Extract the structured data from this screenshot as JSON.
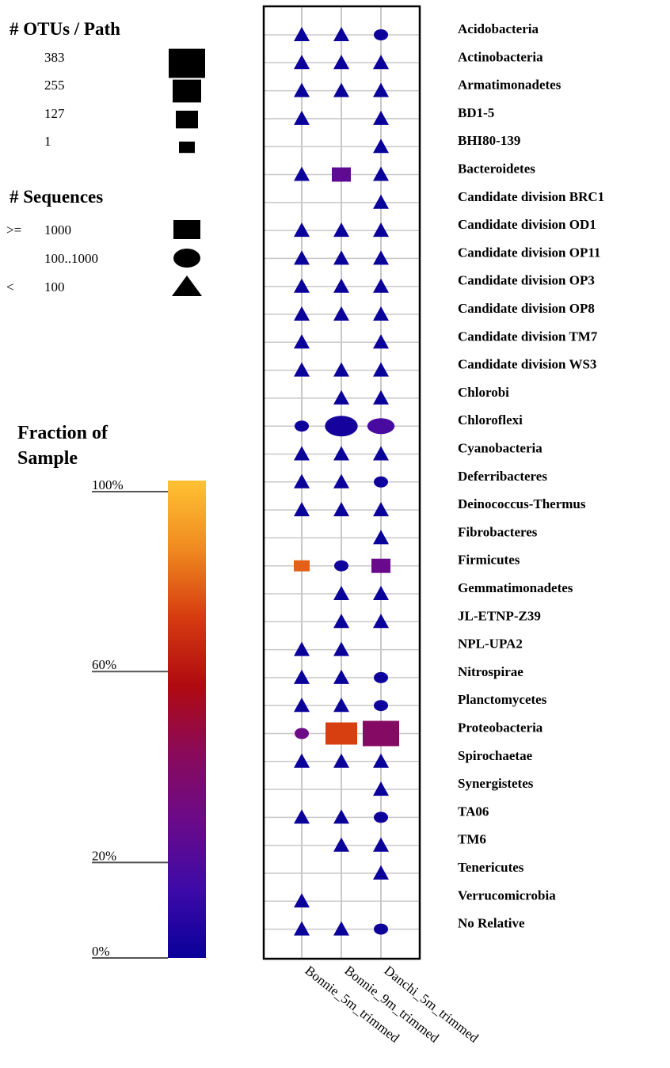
{
  "legend": {
    "otus_title": "# OTUs / Path",
    "otus": [
      {
        "label": "383",
        "value": 383
      },
      {
        "label": "255",
        "value": 255
      },
      {
        "label": "127",
        "value": 127
      },
      {
        "label": "1",
        "value": 1
      }
    ],
    "seq_title": "# Sequences",
    "seq": [
      {
        "op": ">=",
        "label": "1000",
        "shape": "square"
      },
      {
        "op": "",
        "label": "100..1000",
        "shape": "circle"
      },
      {
        "op": "<",
        "label": "100",
        "shape": "triangle"
      }
    ],
    "fraction_title_1": "Fraction of",
    "fraction_title_2": "Sample",
    "fraction_ticks": [
      "100%",
      "60%",
      "20%",
      "0%"
    ],
    "fraction_tick_values": [
      100,
      60,
      20,
      0
    ],
    "colorscale": [
      "#0a009a",
      "#3d0aa8",
      "#6a0a8a",
      "#8a0a5a",
      "#b00a10",
      "#d63c10",
      "#f08a20",
      "#ffc233"
    ]
  },
  "chart_data": {
    "type": "scatter",
    "columns": [
      "Bonnie_5m_trimmed",
      "Bonnie_9m_trimmed",
      "Danchi_5m_trimmed"
    ],
    "rows": [
      "Acidobacteria",
      "Actinobacteria",
      "Armatimonadetes",
      "BD1-5",
      "BHI80-139",
      "Bacteroidetes",
      "Candidate division BRC1",
      "Candidate division OD1",
      "Candidate division OP11",
      "Candidate division OP3",
      "Candidate division OP8",
      "Candidate division TM7",
      "Candidate division WS3",
      "Chlorobi",
      "Chloroflexi",
      "Cyanobacteria",
      "Deferribacteres",
      "Deinococcus-Thermus",
      "Fibrobacteres",
      "Firmicutes",
      "Gemmatimonadetes",
      "JL-ETNP-Z39",
      "NPL-UPA2",
      "Nitrospirae",
      "Planctomycetes",
      "Proteobacteria",
      "Spirochaetae",
      "Synergistetes",
      "TA06",
      "TM6",
      "Tenericutes",
      "Verrucomicrobia",
      "No Relative"
    ],
    "points": [
      {
        "row": 0,
        "col": 0,
        "shape": "triangle",
        "otus": 1,
        "fraction": 0
      },
      {
        "row": 0,
        "col": 1,
        "shape": "triangle",
        "otus": 1,
        "fraction": 0
      },
      {
        "row": 0,
        "col": 2,
        "shape": "circle",
        "otus": 1,
        "fraction": 1
      },
      {
        "row": 1,
        "col": 0,
        "shape": "triangle",
        "otus": 1,
        "fraction": 0
      },
      {
        "row": 1,
        "col": 1,
        "shape": "triangle",
        "otus": 1,
        "fraction": 0
      },
      {
        "row": 1,
        "col": 2,
        "shape": "triangle",
        "otus": 1,
        "fraction": 0
      },
      {
        "row": 2,
        "col": 0,
        "shape": "triangle",
        "otus": 1,
        "fraction": 0
      },
      {
        "row": 2,
        "col": 1,
        "shape": "triangle",
        "otus": 1,
        "fraction": 0
      },
      {
        "row": 2,
        "col": 2,
        "shape": "triangle",
        "otus": 1,
        "fraction": 0
      },
      {
        "row": 3,
        "col": 0,
        "shape": "triangle",
        "otus": 1,
        "fraction": 0
      },
      {
        "row": 3,
        "col": 2,
        "shape": "triangle",
        "otus": 1,
        "fraction": 0
      },
      {
        "row": 4,
        "col": 2,
        "shape": "triangle",
        "otus": 1,
        "fraction": 0
      },
      {
        "row": 5,
        "col": 0,
        "shape": "triangle",
        "otus": 1,
        "fraction": 0
      },
      {
        "row": 5,
        "col": 1,
        "shape": "square",
        "otus": 60,
        "fraction": 25
      },
      {
        "row": 5,
        "col": 2,
        "shape": "triangle",
        "otus": 1,
        "fraction": 0
      },
      {
        "row": 6,
        "col": 2,
        "shape": "triangle",
        "otus": 1,
        "fraction": 0
      },
      {
        "row": 7,
        "col": 0,
        "shape": "triangle",
        "otus": 1,
        "fraction": 0
      },
      {
        "row": 7,
        "col": 1,
        "shape": "triangle",
        "otus": 1,
        "fraction": 0
      },
      {
        "row": 7,
        "col": 2,
        "shape": "triangle",
        "otus": 1,
        "fraction": 0
      },
      {
        "row": 8,
        "col": 0,
        "shape": "triangle",
        "otus": 1,
        "fraction": 0
      },
      {
        "row": 8,
        "col": 1,
        "shape": "triangle",
        "otus": 1,
        "fraction": 0
      },
      {
        "row": 8,
        "col": 2,
        "shape": "triangle",
        "otus": 1,
        "fraction": 0
      },
      {
        "row": 9,
        "col": 0,
        "shape": "triangle",
        "otus": 1,
        "fraction": 0
      },
      {
        "row": 9,
        "col": 1,
        "shape": "triangle",
        "otus": 1,
        "fraction": 0
      },
      {
        "row": 9,
        "col": 2,
        "shape": "triangle",
        "otus": 1,
        "fraction": 0
      },
      {
        "row": 10,
        "col": 0,
        "shape": "triangle",
        "otus": 1,
        "fraction": 0
      },
      {
        "row": 10,
        "col": 1,
        "shape": "triangle",
        "otus": 1,
        "fraction": 0
      },
      {
        "row": 10,
        "col": 2,
        "shape": "triangle",
        "otus": 1,
        "fraction": 0
      },
      {
        "row": 11,
        "col": 0,
        "shape": "triangle",
        "otus": 1,
        "fraction": 0
      },
      {
        "row": 11,
        "col": 2,
        "shape": "triangle",
        "otus": 1,
        "fraction": 0
      },
      {
        "row": 12,
        "col": 0,
        "shape": "triangle",
        "otus": 1,
        "fraction": 0
      },
      {
        "row": 12,
        "col": 1,
        "shape": "triangle",
        "otus": 1,
        "fraction": 0
      },
      {
        "row": 12,
        "col": 2,
        "shape": "triangle",
        "otus": 1,
        "fraction": 0
      },
      {
        "row": 13,
        "col": 1,
        "shape": "triangle",
        "otus": 1,
        "fraction": 0
      },
      {
        "row": 13,
        "col": 2,
        "shape": "triangle",
        "otus": 1,
        "fraction": 0
      },
      {
        "row": 14,
        "col": 0,
        "shape": "circle",
        "otus": 1,
        "fraction": 1
      },
      {
        "row": 14,
        "col": 1,
        "shape": "circle",
        "otus": 270,
        "fraction": 3
      },
      {
        "row": 14,
        "col": 2,
        "shape": "circle",
        "otus": 120,
        "fraction": 18
      },
      {
        "row": 15,
        "col": 0,
        "shape": "triangle",
        "otus": 1,
        "fraction": 0
      },
      {
        "row": 15,
        "col": 1,
        "shape": "triangle",
        "otus": 1,
        "fraction": 0
      },
      {
        "row": 15,
        "col": 2,
        "shape": "triangle",
        "otus": 1,
        "fraction": 0
      },
      {
        "row": 16,
        "col": 0,
        "shape": "triangle",
        "otus": 1,
        "fraction": 0
      },
      {
        "row": 16,
        "col": 1,
        "shape": "triangle",
        "otus": 1,
        "fraction": 0
      },
      {
        "row": 16,
        "col": 2,
        "shape": "circle",
        "otus": 1,
        "fraction": 1
      },
      {
        "row": 17,
        "col": 0,
        "shape": "triangle",
        "otus": 1,
        "fraction": 0
      },
      {
        "row": 17,
        "col": 1,
        "shape": "triangle",
        "otus": 1,
        "fraction": 0
      },
      {
        "row": 17,
        "col": 2,
        "shape": "triangle",
        "otus": 1,
        "fraction": 0
      },
      {
        "row": 18,
        "col": 2,
        "shape": "triangle",
        "otus": 1,
        "fraction": 0
      },
      {
        "row": 19,
        "col": 0,
        "shape": "square",
        "otus": 30,
        "fraction": 78
      },
      {
        "row": 19,
        "col": 1,
        "shape": "circle",
        "otus": 1,
        "fraction": 2
      },
      {
        "row": 19,
        "col": 2,
        "shape": "square",
        "otus": 80,
        "fraction": 28
      },
      {
        "row": 20,
        "col": 1,
        "shape": "triangle",
        "otus": 1,
        "fraction": 0
      },
      {
        "row": 20,
        "col": 2,
        "shape": "triangle",
        "otus": 1,
        "fraction": 0
      },
      {
        "row": 21,
        "col": 1,
        "shape": "triangle",
        "otus": 1,
        "fraction": 0
      },
      {
        "row": 21,
        "col": 2,
        "shape": "triangle",
        "otus": 1,
        "fraction": 0
      },
      {
        "row": 22,
        "col": 0,
        "shape": "triangle",
        "otus": 1,
        "fraction": 0
      },
      {
        "row": 22,
        "col": 1,
        "shape": "triangle",
        "otus": 1,
        "fraction": 0
      },
      {
        "row": 23,
        "col": 0,
        "shape": "triangle",
        "otus": 1,
        "fraction": 0
      },
      {
        "row": 23,
        "col": 1,
        "shape": "triangle",
        "otus": 1,
        "fraction": 0
      },
      {
        "row": 23,
        "col": 2,
        "shape": "circle",
        "otus": 1,
        "fraction": 1
      },
      {
        "row": 24,
        "col": 0,
        "shape": "triangle",
        "otus": 1,
        "fraction": 0
      },
      {
        "row": 24,
        "col": 1,
        "shape": "triangle",
        "otus": 1,
        "fraction": 0
      },
      {
        "row": 24,
        "col": 2,
        "shape": "circle",
        "otus": 1,
        "fraction": 1
      },
      {
        "row": 25,
        "col": 0,
        "shape": "circle",
        "otus": 1,
        "fraction": 30
      },
      {
        "row": 25,
        "col": 1,
        "shape": "square",
        "otus": 255,
        "fraction": 72
      },
      {
        "row": 25,
        "col": 2,
        "shape": "square",
        "otus": 383,
        "fraction": 40
      },
      {
        "row": 26,
        "col": 0,
        "shape": "triangle",
        "otus": 1,
        "fraction": 0
      },
      {
        "row": 26,
        "col": 1,
        "shape": "triangle",
        "otus": 1,
        "fraction": 0
      },
      {
        "row": 26,
        "col": 2,
        "shape": "triangle",
        "otus": 1,
        "fraction": 0
      },
      {
        "row": 27,
        "col": 2,
        "shape": "triangle",
        "otus": 1,
        "fraction": 0
      },
      {
        "row": 28,
        "col": 0,
        "shape": "triangle",
        "otus": 1,
        "fraction": 0
      },
      {
        "row": 28,
        "col": 1,
        "shape": "triangle",
        "otus": 1,
        "fraction": 0
      },
      {
        "row": 28,
        "col": 2,
        "shape": "circle",
        "otus": 1,
        "fraction": 1
      },
      {
        "row": 29,
        "col": 1,
        "shape": "triangle",
        "otus": 1,
        "fraction": 0
      },
      {
        "row": 29,
        "col": 2,
        "shape": "triangle",
        "otus": 1,
        "fraction": 0
      },
      {
        "row": 30,
        "col": 2,
        "shape": "triangle",
        "otus": 1,
        "fraction": 0
      },
      {
        "row": 31,
        "col": 0,
        "shape": "triangle",
        "otus": 1,
        "fraction": 0
      },
      {
        "row": 32,
        "col": 0,
        "shape": "triangle",
        "otus": 1,
        "fraction": 0
      },
      {
        "row": 32,
        "col": 1,
        "shape": "triangle",
        "otus": 1,
        "fraction": 0
      },
      {
        "row": 32,
        "col": 2,
        "shape": "circle",
        "otus": 1,
        "fraction": 1
      }
    ]
  }
}
